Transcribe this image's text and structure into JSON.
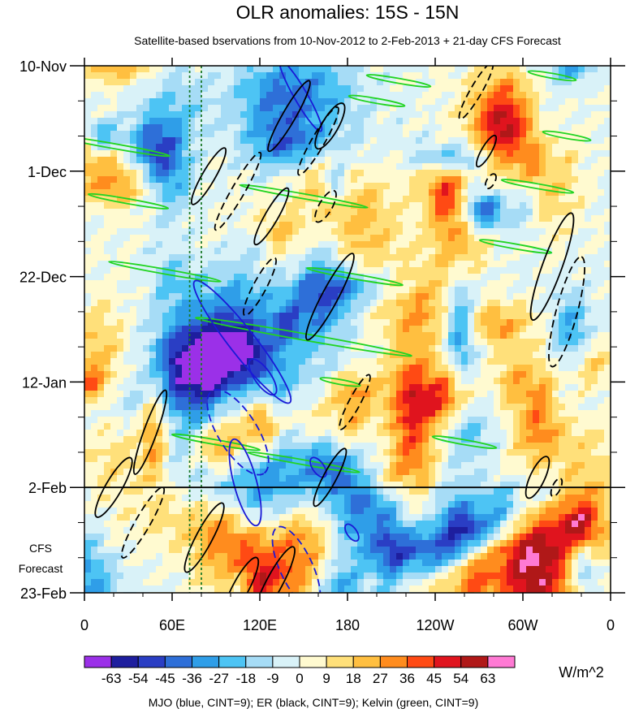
{
  "chart_data": {
    "type": "heatmap",
    "title": "OLR anomalies: 15S - 15N",
    "subtitle": "Satellite-based bservations from 10-Nov-2012 to 2-Feb-2013 + 21-day CFS Forecast",
    "x_tick_labels": [
      "0",
      "60E",
      "120E",
      "180",
      "120W",
      "60W",
      "0"
    ],
    "x_tick_lons": [
      0,
      60,
      120,
      180,
      240,
      300,
      360
    ],
    "y_tick_labels": [
      "10-Nov",
      "1-Dec",
      "22-Dec",
      "12-Jan",
      "2-Feb",
      "23-Feb"
    ],
    "y_tick_days": [
      0,
      21,
      42,
      63,
      84,
      105
    ],
    "x_range": [
      0,
      360
    ],
    "y_range_days": [
      0,
      105
    ],
    "forecast_start_day": 84,
    "forecast_label_1": "CFS",
    "forecast_label_2": "Forecast",
    "colorbar": {
      "levels": [
        -63,
        -54,
        -45,
        -36,
        -27,
        -18,
        -9,
        0,
        9,
        18,
        27,
        36,
        45,
        54,
        63
      ],
      "labels": [
        "-63",
        "-54",
        "-45",
        "-36",
        "-27",
        "-18",
        "-9",
        "0",
        "9",
        "18",
        "27",
        "36",
        "45",
        "54",
        "63"
      ],
      "colors": [
        "#9b30e8",
        "#1e1e9e",
        "#2a3ec4",
        "#2e6fd8",
        "#2f9ee8",
        "#4dc4f4",
        "#a6dcf6",
        "#d9f2f8",
        "#fffad0",
        "#ffe07a",
        "#ffbf40",
        "#ff8c1e",
        "#ff4a14",
        "#e0141e",
        "#b01818",
        "#ff7ad4"
      ],
      "units": "W/m^2"
    },
    "footer": "MJO (blue, CINT=9); ER (black, CINT=9); Kelvin (green, CINT=9)",
    "reference_lon_lines": [
      72,
      80
    ],
    "mjo_contours": [
      {
        "lon": 108,
        "day": 55,
        "rx": 95,
        "ry": 16,
        "angle": 52,
        "dashed": false
      },
      {
        "lon": 122,
        "day": 62,
        "rx": 26,
        "ry": 10,
        "angle": 55,
        "dashed": false
      },
      {
        "lon": 105,
        "day": 73,
        "rx": 60,
        "ry": 24,
        "angle": 58,
        "dashed": true
      },
      {
        "lon": 110,
        "day": 83,
        "rx": 55,
        "ry": 14,
        "angle": 75,
        "dashed": false
      },
      {
        "lon": 160,
        "day": 80,
        "rx": 14,
        "ry": 7,
        "angle": 55,
        "dashed": false
      },
      {
        "lon": 183,
        "day": 93,
        "rx": 12,
        "ry": 6,
        "angle": 55,
        "dashed": false
      },
      {
        "lon": 148,
        "day": 6,
        "rx": 50,
        "ry": 8,
        "angle": 60,
        "dashed": false
      },
      {
        "lon": 145,
        "day": 100,
        "rx": 55,
        "ry": 20,
        "angle": 65,
        "dashed": true
      }
    ],
    "er_contours": [
      {
        "lon": 45,
        "day": 73,
        "rx": 55,
        "ry": 8,
        "angle": -70,
        "dashed": false
      },
      {
        "lon": 20,
        "day": 84,
        "rx": 42,
        "ry": 10,
        "angle": -60,
        "dashed": false
      },
      {
        "lon": 40,
        "day": 91,
        "rx": 50,
        "ry": 9,
        "angle": -60,
        "dashed": true
      },
      {
        "lon": 82,
        "day": 94,
        "rx": 48,
        "ry": 10,
        "angle": -62,
        "dashed": false
      },
      {
        "lon": 130,
        "day": 103,
        "rx": 50,
        "ry": 10,
        "angle": -62,
        "dashed": false
      },
      {
        "lon": 107,
        "day": 104,
        "rx": 42,
        "ry": 10,
        "angle": -62,
        "dashed": false
      },
      {
        "lon": 85,
        "day": 22,
        "rx": 40,
        "ry": 8,
        "angle": -60,
        "dashed": false
      },
      {
        "lon": 105,
        "day": 25,
        "rx": 55,
        "ry": 8,
        "angle": -60,
        "dashed": true
      },
      {
        "lon": 140,
        "day": 10,
        "rx": 50,
        "ry": 8,
        "angle": -60,
        "dashed": false
      },
      {
        "lon": 160,
        "day": 15,
        "rx": 48,
        "ry": 8,
        "angle": -60,
        "dashed": true
      },
      {
        "lon": 168,
        "day": 12,
        "rx": 32,
        "ry": 10,
        "angle": -60,
        "dashed": false
      },
      {
        "lon": 128,
        "day": 30,
        "rx": 40,
        "ry": 8,
        "angle": -60,
        "dashed": false
      },
      {
        "lon": 165,
        "day": 28,
        "rx": 22,
        "ry": 8,
        "angle": -60,
        "dashed": true
      },
      {
        "lon": 168,
        "day": 46,
        "rx": 60,
        "ry": 10,
        "angle": -62,
        "dashed": false
      },
      {
        "lon": 120,
        "day": 44,
        "rx": 40,
        "ry": 8,
        "angle": -62,
        "dashed": true
      },
      {
        "lon": 185,
        "day": 67,
        "rx": 38,
        "ry": 7,
        "angle": -62,
        "dashed": true
      },
      {
        "lon": 168,
        "day": 82,
        "rx": 40,
        "ry": 8,
        "angle": -62,
        "dashed": false
      },
      {
        "lon": 275,
        "day": 17,
        "rx": 22,
        "ry": 6,
        "angle": -60,
        "dashed": false
      },
      {
        "lon": 278,
        "day": 23,
        "rx": 10,
        "ry": 5,
        "angle": -60,
        "dashed": true
      },
      {
        "lon": 268,
        "day": 5,
        "rx": 40,
        "ry": 7,
        "angle": -60,
        "dashed": true
      },
      {
        "lon": 320,
        "day": 40,
        "rx": 70,
        "ry": 12,
        "angle": -70,
        "dashed": false
      },
      {
        "lon": 330,
        "day": 49,
        "rx": 70,
        "ry": 13,
        "angle": -75,
        "dashed": true
      },
      {
        "lon": 310,
        "day": 82,
        "rx": 28,
        "ry": 9,
        "angle": -65,
        "dashed": false
      },
      {
        "lon": 323,
        "day": 84,
        "rx": 12,
        "ry": 5,
        "angle": -65,
        "dashed": true
      }
    ],
    "kelvin_contours": [
      {
        "lon": 20,
        "day": 16,
        "rx": 70,
        "ry": 3,
        "angle": 10,
        "dashed": false
      },
      {
        "lon": 30,
        "day": 27,
        "rx": 50,
        "ry": 3,
        "angle": 10,
        "dashed": false
      },
      {
        "lon": 55,
        "day": 41,
        "rx": 70,
        "ry": 3,
        "angle": 10,
        "dashed": false
      },
      {
        "lon": 150,
        "day": 54,
        "rx": 135,
        "ry": 4,
        "angle": 10,
        "dashed": false
      },
      {
        "lon": 150,
        "day": 26,
        "rx": 80,
        "ry": 3,
        "angle": 10,
        "dashed": false
      },
      {
        "lon": 185,
        "day": 42,
        "rx": 60,
        "ry": 3,
        "angle": 10,
        "dashed": false
      },
      {
        "lon": 175,
        "day": 63,
        "rx": 25,
        "ry": 3,
        "angle": 10,
        "dashed": false
      },
      {
        "lon": 215,
        "day": 3,
        "rx": 40,
        "ry": 3,
        "angle": 10,
        "dashed": false
      },
      {
        "lon": 200,
        "day": 7,
        "rx": 35,
        "ry": 3,
        "angle": 10,
        "dashed": false
      },
      {
        "lon": 310,
        "day": 24,
        "rx": 45,
        "ry": 3,
        "angle": 10,
        "dashed": false
      },
      {
        "lon": 295,
        "day": 36,
        "rx": 45,
        "ry": 3,
        "angle": 10,
        "dashed": false
      },
      {
        "lon": 320,
        "day": 2,
        "rx": 30,
        "ry": 3,
        "angle": 10,
        "dashed": false
      },
      {
        "lon": 330,
        "day": 14,
        "rx": 30,
        "ry": 3,
        "angle": 10,
        "dashed": false
      },
      {
        "lon": 90,
        "day": 75,
        "rx": 55,
        "ry": 3,
        "angle": 10,
        "dashed": false
      },
      {
        "lon": 150,
        "day": 79,
        "rx": 70,
        "ry": 3,
        "angle": 10,
        "dashed": false
      },
      {
        "lon": 260,
        "day": 75,
        "rx": 40,
        "ry": 3,
        "angle": 10,
        "dashed": false
      }
    ]
  }
}
